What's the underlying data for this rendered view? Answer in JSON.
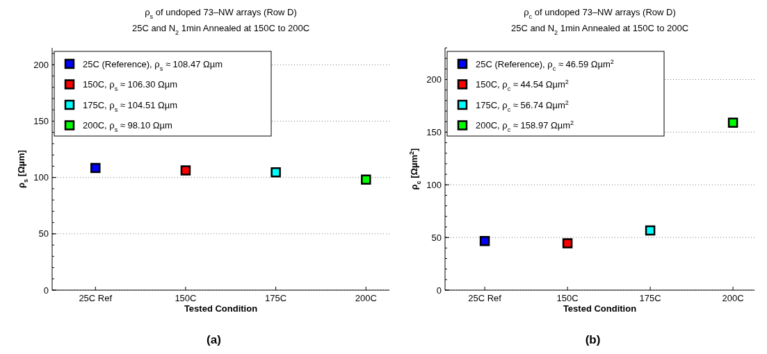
{
  "chart_data": [
    {
      "type": "scatter",
      "title": "ρ$_{s}$ of undoped 73–NW arrays (Row D)",
      "subtitle": "25C and N$_{2}$ 1min Annealed at 150C to 200C",
      "xlabel": "Tested Condition",
      "ylabel": "ρ$_{s}$ [Ωµm]",
      "annotations": [
        "(a)"
      ],
      "categories": [
        "25C Ref",
        "150C",
        "175C",
        "200C"
      ],
      "ylim": [
        0,
        215
      ],
      "yticks": [
        0,
        50,
        100,
        150,
        200
      ],
      "grid": "y",
      "legend": "top left",
      "marker": "square",
      "series": [
        {
          "name": "25C (Reference), ρ$_{s}$ ≈ 108.47 Ωµm",
          "color": "#0000ff",
          "x": [
            "25C Ref"
          ],
          "values": [
            108.47
          ]
        },
        {
          "name": "150C, ρ$_{s}$ ≈ 106.30 Ωµm",
          "color": "#ff0000",
          "x": [
            "150C"
          ],
          "values": [
            106.3
          ]
        },
        {
          "name": "175C, ρ$_{s}$ ≈ 104.51 Ωµm",
          "color": "#00ffff",
          "x": [
            "175C"
          ],
          "values": [
            104.51
          ]
        },
        {
          "name": "200C, ρ$_{s}$ ≈ 98.10 Ωµm",
          "color": "#00ff00",
          "x": [
            "200C"
          ],
          "values": [
            98.1
          ]
        }
      ]
    },
    {
      "type": "scatter",
      "title": "ρ$_{c}$ of undoped 73–NW arrays (Row D)",
      "subtitle": "25C and N$_{2}$ 1min Annealed at 150C to 200C",
      "xlabel": "Tested Condition",
      "ylabel": "ρ$_{c}$ [Ωµm$^{2}$]",
      "annotations": [
        "(b)"
      ],
      "categories": [
        "25C Ref",
        "150C",
        "175C",
        "200C"
      ],
      "ylim": [
        0,
        230
      ],
      "yticks": [
        0,
        50,
        100,
        150,
        200
      ],
      "grid": "y",
      "legend": "top left",
      "marker": "square",
      "series": [
        {
          "name": "25C (Reference), ρ$_{c}$ ≈ 46.59 Ωµm$^{2}$",
          "color": "#0000ff",
          "x": [
            "25C Ref"
          ],
          "values": [
            46.59
          ]
        },
        {
          "name": "150C, ρ$_{c}$ ≈ 44.54 Ωµm$^{2}$",
          "color": "#ff0000",
          "x": [
            "150C"
          ],
          "values": [
            44.54
          ]
        },
        {
          "name": "175C, ρ$_{c}$ ≈ 56.74 Ωµm$^{2}$",
          "color": "#00ffff",
          "x": [
            "175C"
          ],
          "values": [
            56.74
          ]
        },
        {
          "name": "200C, ρ$_{c}$ ≈ 158.97 Ωµm$^{2}$",
          "color": "#00ff00",
          "x": [
            "200C"
          ],
          "values": [
            158.97
          ]
        }
      ]
    }
  ]
}
